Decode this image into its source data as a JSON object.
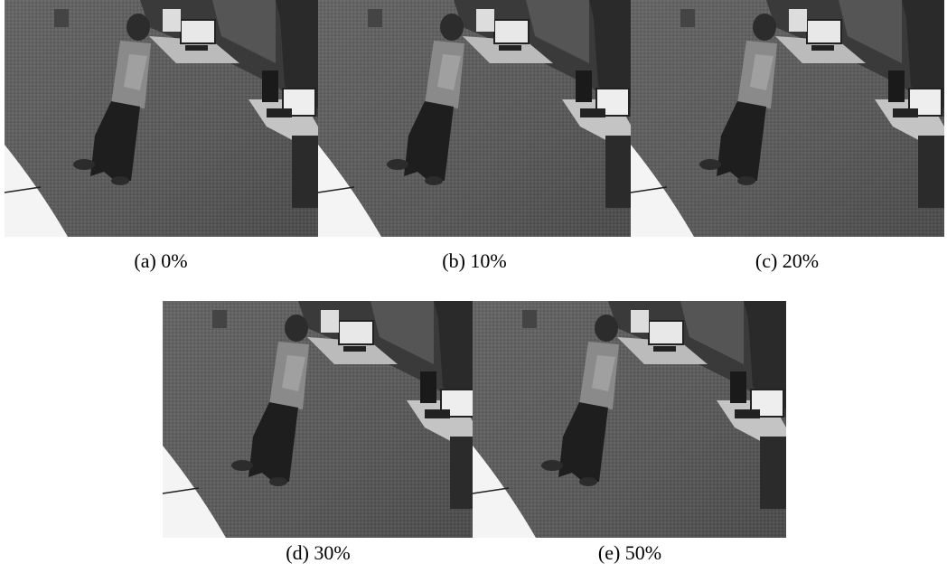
{
  "panels": [
    {
      "caption": "(a) 0%"
    },
    {
      "caption": "(b) 10%"
    },
    {
      "caption": "(c) 20%"
    },
    {
      "caption": "(d) 30%"
    },
    {
      "caption": "(e) 50%"
    }
  ]
}
